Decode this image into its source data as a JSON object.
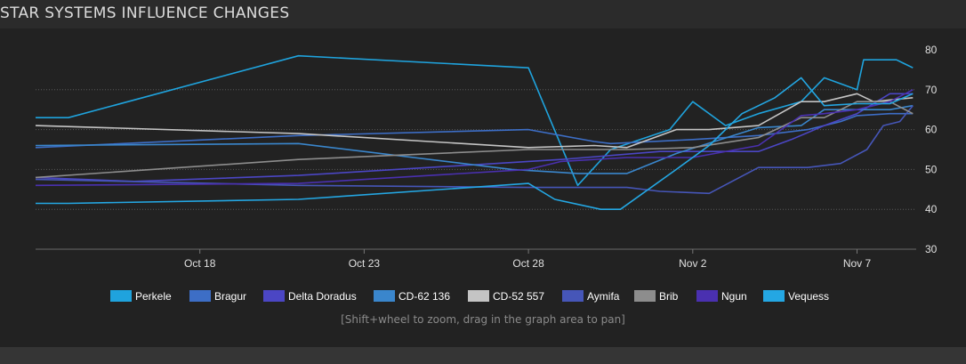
{
  "page": {
    "title": "STAR SYSTEMS INFLUENCE CHANGES",
    "hint": "[Shift+wheel to zoom, drag in the graph area to pan]"
  },
  "chart_data": {
    "type": "line",
    "title": "STAR SYSTEMS INFLUENCE CHANGES",
    "xlabel": "",
    "ylabel": "",
    "x_tick_labels": [
      "Oct 18",
      "Oct 23",
      "Oct 28",
      "Nov 2",
      "Nov 7"
    ],
    "x_tick_days": [
      18,
      23,
      28,
      33,
      38
    ],
    "xlim_days": [
      13,
      39.8
    ],
    "ylim": [
      30,
      80
    ],
    "y_ticks": [
      30,
      40,
      50,
      60,
      70,
      80
    ],
    "y_axis_side": "right",
    "grid": true,
    "legend_position": "bottom",
    "series": [
      {
        "name": "Perkele",
        "color": "#1fa3dd",
        "points": [
          [
            13,
            63
          ],
          [
            14,
            63
          ],
          [
            21,
            78.5
          ],
          [
            28,
            75.5
          ],
          [
            29.5,
            46
          ],
          [
            30.5,
            55
          ],
          [
            32.3,
            60
          ],
          [
            33,
            67
          ],
          [
            34,
            61
          ],
          [
            35,
            64
          ],
          [
            36.3,
            67
          ],
          [
            37,
            73
          ],
          [
            38,
            70
          ],
          [
            38.2,
            77.5
          ],
          [
            39.2,
            77.5
          ],
          [
            39.7,
            75.5
          ]
        ]
      },
      {
        "name": "Bragur",
        "color": "#3d6ec6",
        "points": [
          [
            13,
            55.5
          ],
          [
            21,
            58.5
          ],
          [
            28,
            60
          ],
          [
            30,
            57
          ],
          [
            30.5,
            56.5
          ],
          [
            33,
            57.5
          ],
          [
            35,
            58.5
          ],
          [
            36.5,
            60
          ],
          [
            37.5,
            62
          ],
          [
            38,
            63.5
          ],
          [
            39,
            64
          ],
          [
            39.7,
            64
          ]
        ]
      },
      {
        "name": "Delta Doradus",
        "color": "#4b46c4",
        "points": [
          [
            13,
            48
          ],
          [
            16,
            47
          ],
          [
            21,
            48.5
          ],
          [
            26,
            51
          ],
          [
            29,
            52.5
          ],
          [
            32,
            54.5
          ],
          [
            35,
            54.5
          ],
          [
            36,
            57.5
          ],
          [
            37,
            61
          ],
          [
            38,
            64
          ],
          [
            39,
            69
          ],
          [
            39.7,
            69
          ]
        ]
      },
      {
        "name": "CD-62 136",
        "color": "#3a86cc",
        "points": [
          [
            13,
            56
          ],
          [
            21,
            56.5
          ],
          [
            27.5,
            50
          ],
          [
            29.5,
            49
          ],
          [
            31,
            49
          ],
          [
            32.5,
            54
          ],
          [
            35,
            60.5
          ],
          [
            36.3,
            61
          ],
          [
            37,
            65
          ],
          [
            38,
            65
          ],
          [
            39,
            65
          ],
          [
            39.7,
            66
          ]
        ]
      },
      {
        "name": "CD-52 557",
        "color": "#c4c4c4",
        "points": [
          [
            13,
            61
          ],
          [
            21,
            59
          ],
          [
            28,
            55.5
          ],
          [
            30,
            56
          ],
          [
            31,
            55.5
          ],
          [
            32.5,
            60
          ],
          [
            33.5,
            60
          ],
          [
            35,
            61
          ],
          [
            36.3,
            67
          ],
          [
            37,
            67
          ],
          [
            38,
            69
          ],
          [
            38.5,
            67
          ],
          [
            39.7,
            68
          ]
        ]
      },
      {
        "name": "Aymifa",
        "color": "#4656b8",
        "points": [
          [
            13,
            47.5
          ],
          [
            21,
            46
          ],
          [
            28,
            45.5
          ],
          [
            31,
            45.5
          ],
          [
            32,
            44.5
          ],
          [
            33.5,
            44
          ],
          [
            35,
            50.5
          ],
          [
            36.5,
            50.5
          ],
          [
            37.5,
            51.5
          ],
          [
            38.3,
            55
          ],
          [
            38.8,
            61
          ],
          [
            39.3,
            62
          ],
          [
            39.7,
            66
          ]
        ]
      },
      {
        "name": "Brib",
        "color": "#8d8d8d",
        "points": [
          [
            13,
            48
          ],
          [
            21,
            52.5
          ],
          [
            28,
            55
          ],
          [
            31,
            55
          ],
          [
            33,
            55.5
          ],
          [
            35,
            58
          ],
          [
            36.3,
            63
          ],
          [
            37,
            63
          ],
          [
            38,
            67
          ],
          [
            39,
            67
          ],
          [
            39.7,
            64
          ]
        ]
      },
      {
        "name": "Ngun",
        "color": "#4a30b0",
        "points": [
          [
            13,
            46
          ],
          [
            21,
            46.5
          ],
          [
            28,
            50
          ],
          [
            29,
            52
          ],
          [
            31,
            53
          ],
          [
            33,
            53
          ],
          [
            35,
            56
          ],
          [
            36.3,
            63.5
          ],
          [
            37,
            64
          ],
          [
            38,
            65
          ],
          [
            39,
            67
          ],
          [
            39.7,
            70
          ]
        ]
      },
      {
        "name": "Vequess",
        "color": "#24a7e3",
        "points": [
          [
            13,
            41.5
          ],
          [
            14,
            41.5
          ],
          [
            21,
            42.5
          ],
          [
            28,
            46.5
          ],
          [
            28.8,
            42.5
          ],
          [
            30.2,
            40
          ],
          [
            30.8,
            40
          ],
          [
            32.5,
            50
          ],
          [
            33.5,
            56
          ],
          [
            34.5,
            64
          ],
          [
            35.5,
            68
          ],
          [
            36.3,
            73
          ],
          [
            37,
            66
          ],
          [
            38,
            66.5
          ],
          [
            39,
            66.5
          ],
          [
            39.7,
            69
          ]
        ]
      }
    ]
  }
}
